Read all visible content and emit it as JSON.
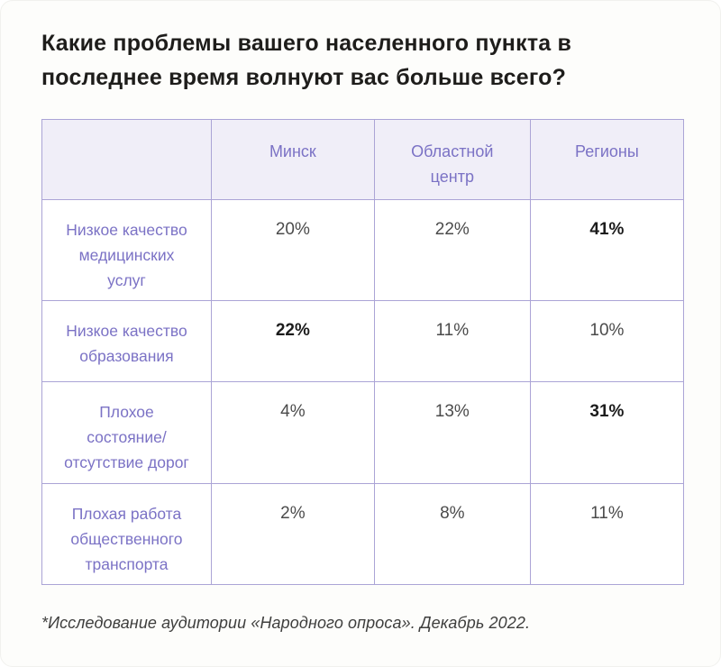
{
  "page": {
    "title": "Какие проблемы вашего населенного пункта в последнее время волнуют вас больше всего?",
    "footnote": "*Исследование аудитории «Народного опроса». Декабрь 2022."
  },
  "colors": {
    "accent_purple_text": "#7b72c5",
    "header_background": "#f0eef8",
    "table_border": "#aba4d6",
    "value_text": "#4b4b4b",
    "bold_value_text": "#1c1c1c",
    "title_text": "#1e1d1b"
  },
  "chart_data": {
    "type": "table",
    "title": "Какие проблемы вашего населенного пункта в последнее время волнуют вас больше всего?",
    "columns": [
      "",
      "Минск",
      "Областной центр",
      "Регионы"
    ],
    "rows": [
      {
        "label": "Низкое качество медицинских услуг",
        "values": [
          "20%",
          "22%",
          "41%"
        ],
        "bold": [
          false,
          false,
          true
        ]
      },
      {
        "label": "Низкое качество образования",
        "values": [
          "22%",
          "11%",
          "10%"
        ],
        "bold": [
          true,
          false,
          false
        ]
      },
      {
        "label": "Плохое состояние/ отсутствие дорог",
        "values": [
          "4%",
          "13%",
          "31%"
        ],
        "bold": [
          false,
          false,
          true
        ]
      },
      {
        "label": "Плохая работа общественного транспорта",
        "values": [
          "2%",
          "8%",
          "11%"
        ],
        "bold": [
          false,
          false,
          false
        ]
      }
    ],
    "source": "*Исследование аудитории «Народного опроса». Декабрь 2022.",
    "layout": {
      "bold_meaning": "highest-or-highlighted value in row",
      "grid": true,
      "header_position": "top"
    }
  }
}
